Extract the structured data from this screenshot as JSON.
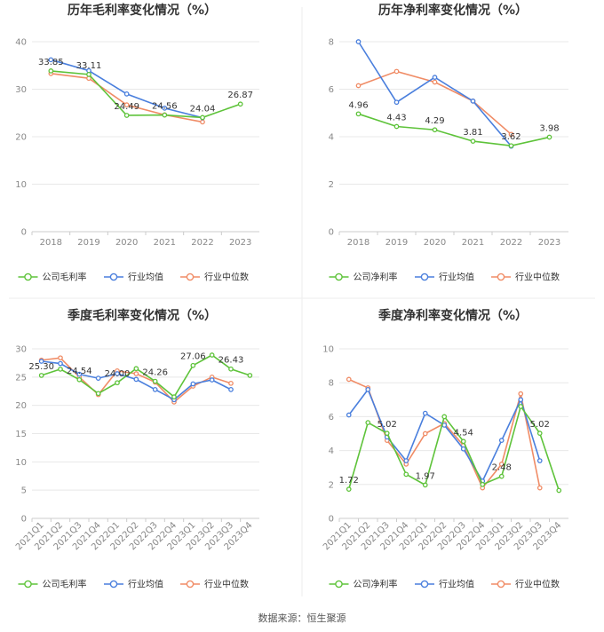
{
  "source": "数据来源：恒生聚源",
  "colors": {
    "company": "#5ec33a",
    "industry_avg": "#4a7fdd",
    "industry_median": "#f08c66",
    "grid": "#e8e8e8",
    "axis_text": "#888888",
    "title_text": "#333333"
  },
  "chart_data": [
    {
      "type": "line",
      "title": "历年毛利率变化情况（%）",
      "categories": [
        "2018",
        "2019",
        "2020",
        "2021",
        "2022",
        "2023"
      ],
      "ylim": [
        0,
        40
      ],
      "yticks": [
        0,
        10,
        20,
        30,
        40
      ],
      "grid": true,
      "legend": "bottom",
      "series": [
        {
          "name": "公司毛利率",
          "key": "company",
          "values": [
            33.85,
            33.11,
            24.49,
            24.56,
            24.04,
            26.87
          ],
          "labels": [
            "33.85",
            "33.11",
            "24.49",
            "24.56",
            "24.04",
            "26.87"
          ]
        },
        {
          "name": "行业均值",
          "key": "industry_avg",
          "values": [
            36.2,
            33.9,
            29.0,
            26.0,
            24.0,
            null
          ]
        },
        {
          "name": "行业中位数",
          "key": "industry_median",
          "values": [
            33.3,
            32.3,
            26.7,
            24.6,
            23.1,
            null
          ]
        }
      ]
    },
    {
      "type": "line",
      "title": "历年净利率变化情况（%）",
      "categories": [
        "2018",
        "2019",
        "2020",
        "2021",
        "2022",
        "2023"
      ],
      "ylim": [
        0,
        8
      ],
      "yticks": [
        0,
        2,
        4,
        6,
        8
      ],
      "grid": true,
      "legend": "bottom",
      "series": [
        {
          "name": "公司净利率",
          "key": "company",
          "values": [
            4.96,
            4.43,
            4.29,
            3.81,
            3.62,
            3.98
          ],
          "labels": [
            "4.96",
            "4.43",
            "4.29",
            "3.81",
            "3.62",
            "3.98"
          ]
        },
        {
          "name": "行业均值",
          "key": "industry_avg",
          "values": [
            8.0,
            5.45,
            6.5,
            5.5,
            3.6,
            null
          ]
        },
        {
          "name": "行业中位数",
          "key": "industry_median",
          "values": [
            6.15,
            6.75,
            6.3,
            5.5,
            4.1,
            null
          ]
        }
      ]
    },
    {
      "type": "line",
      "title": "季度毛利率变化情况（%）",
      "categories": [
        "2021Q1",
        "2021Q2",
        "2021Q3",
        "2021Q4",
        "2022Q1",
        "2022Q2",
        "2022Q3",
        "2022Q4",
        "2023Q1",
        "2023Q2",
        "2023Q3",
        "2023Q4"
      ],
      "ylim": [
        0,
        30
      ],
      "yticks": [
        0,
        5,
        10,
        15,
        20,
        25,
        30
      ],
      "grid": true,
      "legend": "bottom",
      "series": [
        {
          "name": "公司毛利率",
          "key": "company",
          "values": [
            25.3,
            26.4,
            24.54,
            22.1,
            24.0,
            26.5,
            24.26,
            21.5,
            27.06,
            28.9,
            26.43,
            25.3
          ],
          "labels": [
            "25.30",
            null,
            "24.54",
            null,
            "24.00",
            null,
            "24.26",
            null,
            "27.06",
            null,
            "26.43",
            null
          ]
        },
        {
          "name": "行业均值",
          "key": "industry_avg",
          "values": [
            27.8,
            27.4,
            25.5,
            24.8,
            25.6,
            24.6,
            22.8,
            21.0,
            23.8,
            24.5,
            22.8,
            null
          ]
        },
        {
          "name": "行业中位数",
          "key": "industry_median",
          "values": [
            28.0,
            28.4,
            25.0,
            21.9,
            26.1,
            25.6,
            24.1,
            20.6,
            23.4,
            25.0,
            23.9,
            null
          ]
        }
      ]
    },
    {
      "type": "line",
      "title": "季度净利率变化情况（%）",
      "categories": [
        "2021Q1",
        "2021Q2",
        "2021Q3",
        "2021Q4",
        "2022Q1",
        "2022Q2",
        "2022Q3",
        "2022Q4",
        "2023Q1",
        "2023Q2",
        "2023Q3",
        "2023Q4"
      ],
      "ylim": [
        0,
        10
      ],
      "yticks": [
        0,
        2,
        4,
        6,
        8,
        10
      ],
      "grid": true,
      "legend": "bottom",
      "series": [
        {
          "name": "公司净利率",
          "key": "company",
          "values": [
            1.72,
            5.65,
            5.02,
            2.6,
            1.97,
            6.0,
            4.54,
            2.0,
            2.48,
            6.6,
            5.02,
            1.65
          ],
          "labels": [
            "1.72",
            null,
            "5.02",
            null,
            "1.97",
            null,
            "4.54",
            null,
            "2.48",
            null,
            "5.02",
            null
          ]
        },
        {
          "name": "行业均值",
          "key": "industry_avg",
          "values": [
            6.1,
            7.6,
            4.8,
            3.4,
            6.2,
            5.5,
            4.1,
            2.2,
            4.6,
            7.0,
            3.4,
            null
          ]
        },
        {
          "name": "行业中位数",
          "key": "industry_median",
          "values": [
            8.2,
            7.7,
            4.6,
            3.2,
            5.0,
            5.6,
            4.3,
            1.8,
            3.2,
            7.35,
            1.8,
            null
          ]
        }
      ]
    }
  ]
}
